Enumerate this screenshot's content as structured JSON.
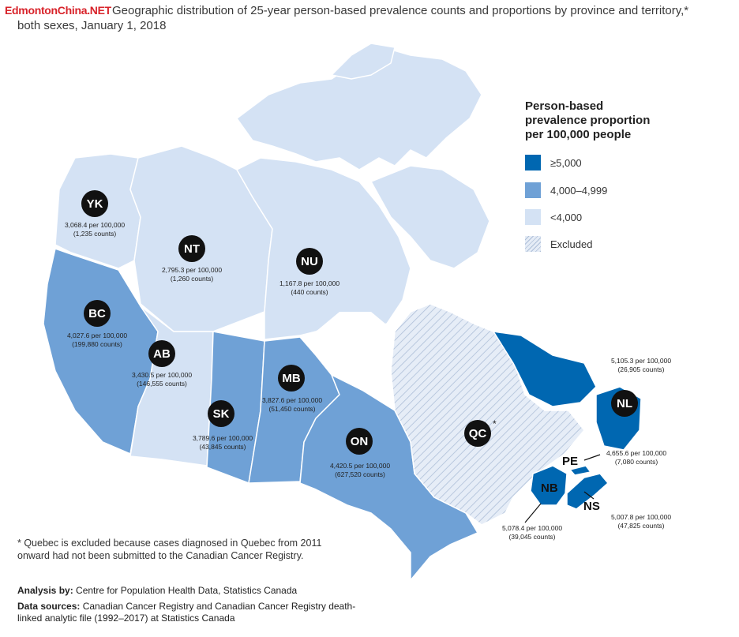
{
  "watermark": "EdmontonChina.NET",
  "title_line1": "Geographic distribution of 25-year person-based prevalence counts and proportions by province and territory,*",
  "title_line2": "both sexes, January 1, 2018",
  "legend": {
    "title_lines": [
      "Person-based",
      "prevalence proportion",
      "per 100,000 people"
    ],
    "items": [
      {
        "label": "≥5,000",
        "color": "#0067b1"
      },
      {
        "label": "4,000–4,999",
        "color": "#6fa1d6"
      },
      {
        "label": "<4,000",
        "color": "#d4e2f4"
      },
      {
        "label": "Excluded",
        "color": "hatched"
      }
    ]
  },
  "regions": {
    "YK": {
      "code": "YK",
      "rate": "3,068.4 per 100,000",
      "counts": "(1,235 counts)",
      "class": "<4,000"
    },
    "NT": {
      "code": "NT",
      "rate": "2,795.3 per 100,000",
      "counts": "(1,260 counts)",
      "class": "<4,000"
    },
    "NU": {
      "code": "NU",
      "rate": "1,167.8 per 100,000",
      "counts": "(440 counts)",
      "class": "<4,000"
    },
    "BC": {
      "code": "BC",
      "rate": "4,027.6 per 100,000",
      "counts": "(199,880 counts)",
      "class": "4,000–4,999"
    },
    "AB": {
      "code": "AB",
      "rate": "3,430.5 per 100,000",
      "counts": "(146,555 counts)",
      "class": "<4,000"
    },
    "SK": {
      "code": "SK",
      "rate": "3,789.6 per 100,000",
      "counts": "(43,845 counts)",
      "class": "<4,000"
    },
    "MB": {
      "code": "MB",
      "rate": "3,827.6 per 100,000",
      "counts": "(51,450 counts)",
      "class": "<4,000"
    },
    "ON": {
      "code": "ON",
      "rate": "4,420.5 per 100,000",
      "counts": "(627,520 counts)",
      "class": "4,000–4,999"
    },
    "QC": {
      "code": "QC",
      "asterisk": "*",
      "class": "Excluded"
    },
    "NL": {
      "code": "NL",
      "rate": "5,105.3 per 100,000",
      "counts": "(26,905 counts)",
      "class": "≥5,000"
    },
    "PE": {
      "code": "PE",
      "rate": "4,655.6 per 100,000",
      "counts": "(7,080 counts)",
      "class": "4,000–4,999"
    },
    "NB": {
      "code": "NB",
      "rate": "5,078.4 per 100,000",
      "counts": "(39,045 counts)",
      "class": "≥5,000"
    },
    "NS": {
      "code": "NS",
      "rate": "5,007.8 per 100,000",
      "counts": "(47,825 counts)",
      "class": "≥5,000"
    }
  },
  "footnote": "* Quebec is excluded because cases diagnosed in Quebec from 2011 onward had not been submitted to the Canadian Cancer Registry.",
  "analysis_label": "Analysis by:",
  "analysis_text": " Centre for Population Health Data, Statistics Canada",
  "sources_label": "Data sources:",
  "sources_text": " Canadian Cancer Registry and Canadian Cancer Registry death-linked analytic file  (1992–2017) at Statistics Canada"
}
